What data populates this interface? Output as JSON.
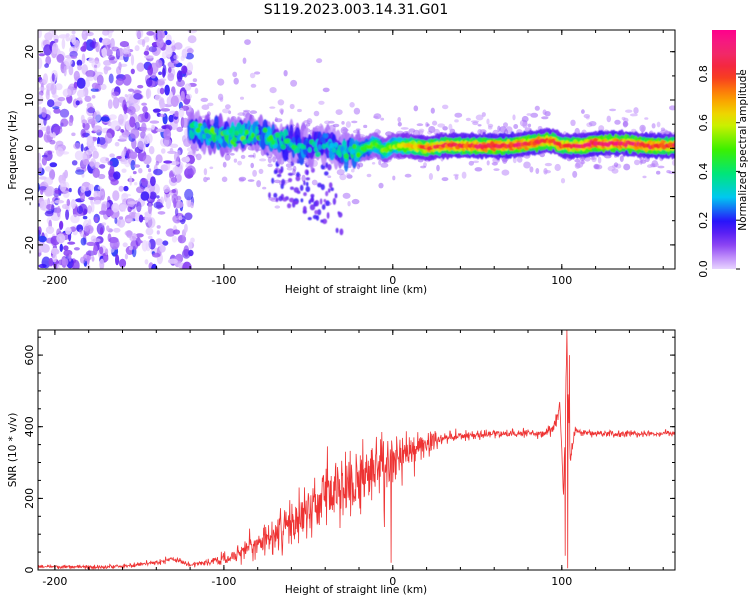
{
  "figure": {
    "title": "S119.2023.003.14.31.G01"
  },
  "chart_data": [
    {
      "type": "heatmap",
      "title": "",
      "xlabel": "Height of straight line (km)",
      "ylabel": "Frequency (Hz)",
      "xlim": [
        -210,
        167
      ],
      "ylim": [
        -25,
        24.5
      ],
      "xticks": [
        -200,
        -100,
        0,
        100
      ],
      "yticks": [
        -20,
        -10,
        0,
        10,
        20
      ],
      "colorbar": {
        "label": "Normalized spectral amplitude",
        "range": [
          0,
          0.98
        ],
        "ticks": [
          0.0,
          0.2,
          0.4,
          0.6,
          0.8
        ],
        "colormap": "hsv-like purple-blue-cyan-green-yellow-red-magenta"
      },
      "ridge": [
        [
          -120,
          4
        ],
        [
          -110,
          3
        ],
        [
          -100,
          3
        ],
        [
          -90,
          2.5
        ],
        [
          -80,
          3
        ],
        [
          -70,
          2
        ],
        [
          -60,
          1
        ],
        [
          -50,
          0
        ],
        [
          -40,
          1
        ],
        [
          -35,
          0.5
        ],
        [
          -30,
          -1
        ],
        [
          -20,
          -0.5
        ],
        [
          -10,
          1
        ],
        [
          -5,
          -0.5
        ],
        [
          0,
          0.5
        ],
        [
          10,
          0.5
        ],
        [
          20,
          0
        ],
        [
          30,
          0.5
        ],
        [
          40,
          0.5
        ],
        [
          50,
          0.5
        ],
        [
          60,
          0.5
        ],
        [
          70,
          0.5
        ],
        [
          80,
          1
        ],
        [
          90,
          1.5
        ],
        [
          95,
          1.5
        ],
        [
          100,
          0.5
        ],
        [
          110,
          0.5
        ],
        [
          120,
          1
        ],
        [
          130,
          1
        ],
        [
          140,
          1
        ],
        [
          150,
          0.5
        ],
        [
          167,
          0.5
        ]
      ],
      "ridge_amplitude": [
        [
          -120,
          0.35
        ],
        [
          -100,
          0.45
        ],
        [
          -80,
          0.4
        ],
        [
          -60,
          0.35
        ],
        [
          -40,
          0.3
        ],
        [
          -20,
          0.45
        ],
        [
          0,
          0.55
        ],
        [
          20,
          0.8
        ],
        [
          40,
          0.85
        ],
        [
          60,
          0.9
        ],
        [
          80,
          0.88
        ],
        [
          100,
          0.8
        ],
        [
          120,
          0.9
        ],
        [
          140,
          0.88
        ],
        [
          167,
          0.85
        ]
      ],
      "noise_region": {
        "x_range": [
          -210,
          -118
        ],
        "y_range": [
          -25,
          24.5
        ]
      }
    },
    {
      "type": "line",
      "title": "",
      "xlabel": "Height of straight line (km)",
      "ylabel": "SNR (10 * v/v)",
      "xlim": [
        -210,
        167
      ],
      "ylim": [
        0,
        670
      ],
      "xticks": [
        -200,
        -100,
        0,
        100
      ],
      "yticks": [
        0,
        200,
        400,
        600
      ],
      "color": "#ee3333",
      "series": [
        {
          "values": [
            [
              -210,
              10
            ],
            [
              -180,
              8
            ],
            [
              -160,
              10
            ],
            [
              -140,
              22
            ],
            [
              -130,
              30
            ],
            [
              -120,
              15
            ],
            [
              -110,
              20
            ],
            [
              -100,
              30
            ],
            [
              -90,
              50
            ],
            [
              -80,
              70
            ],
            [
              -70,
              100
            ],
            [
              -60,
              130
            ],
            [
              -50,
              170
            ],
            [
              -40,
              200
            ],
            [
              -30,
              230
            ],
            [
              -20,
              250
            ],
            [
              -10,
              285
            ],
            [
              0,
              310
            ],
            [
              10,
              330
            ],
            [
              20,
              350
            ],
            [
              30,
              370
            ],
            [
              40,
              375
            ],
            [
              50,
              378
            ],
            [
              60,
              380
            ],
            [
              70,
              380
            ],
            [
              80,
              382
            ],
            [
              90,
              384
            ],
            [
              95,
              395
            ],
            [
              99,
              460
            ],
            [
              101,
              200
            ],
            [
              103,
              620
            ],
            [
              105,
              300
            ],
            [
              108,
              392
            ],
            [
              112,
              382
            ],
            [
              120,
              380
            ],
            [
              130,
              380
            ],
            [
              140,
              382
            ],
            [
              150,
              380
            ],
            [
              167,
              382
            ]
          ],
          "spread": [
            [
              -210,
              5
            ],
            [
              -130,
              8
            ],
            [
              -110,
              10
            ],
            [
              -90,
              25
            ],
            [
              -70,
              50
            ],
            [
              -50,
              70
            ],
            [
              -30,
              100
            ],
            [
              -10,
              120
            ],
            [
              0,
              80
            ],
            [
              10,
              60
            ],
            [
              20,
              40
            ],
            [
              30,
              25
            ],
            [
              40,
              18
            ],
            [
              60,
              14
            ],
            [
              90,
              14
            ],
            [
              100,
              30
            ],
            [
              110,
              10
            ],
            [
              167,
              10
            ]
          ]
        }
      ],
      "spike_samples": [
        [
          -1,
          20
        ],
        [
          -3,
          360
        ],
        [
          -5,
          120
        ],
        [
          -12,
          310
        ],
        [
          -25,
          150
        ],
        [
          -28,
          330
        ],
        [
          103,
          670
        ],
        [
          103.5,
          5
        ],
        [
          102,
          40
        ],
        [
          104.5,
          600
        ]
      ]
    }
  ]
}
